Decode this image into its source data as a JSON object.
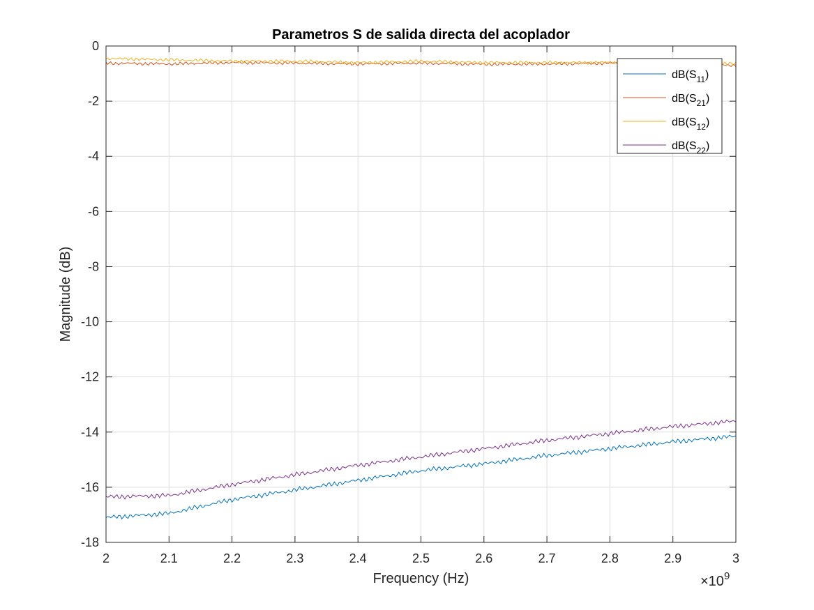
{
  "chart_data": {
    "type": "line",
    "title": "Parametros S de salida directa del acoplador",
    "xlabel": "Frequency (Hz)",
    "ylabel": "Magnitude (dB)",
    "x_exponent_label": "×10",
    "x_exponent_power": "9",
    "xlim": [
      2,
      3
    ],
    "ylim": [
      -18,
      0
    ],
    "x_ticks": [
      2,
      2.1,
      2.2,
      2.3,
      2.4,
      2.5,
      2.6,
      2.7,
      2.8,
      2.9,
      3
    ],
    "x_tick_labels": [
      "2",
      "2.1",
      "2.2",
      "2.3",
      "2.4",
      "2.5",
      "2.6",
      "2.7",
      "2.8",
      "2.9",
      "3"
    ],
    "y_ticks": [
      0,
      -2,
      -4,
      -6,
      -8,
      -10,
      -12,
      -14,
      -16,
      -18
    ],
    "y_tick_labels": [
      "0",
      "-2",
      "-4",
      "-6",
      "-8",
      "-10",
      "-12",
      "-14",
      "-16",
      "-18"
    ],
    "grid": true,
    "legend_position": "top-right",
    "x": [
      2.0,
      2.1,
      2.2,
      2.3,
      2.4,
      2.5,
      2.6,
      2.7,
      2.8,
      2.9,
      3.0
    ],
    "series": [
      {
        "name": "dB(S11)",
        "legend_prefix": "dB(S",
        "legend_sub": "11",
        "legend_suffix": ")",
        "color": "#0072BD",
        "values": [
          -17.1,
          -16.95,
          -16.45,
          -16.1,
          -15.75,
          -15.4,
          -15.15,
          -14.85,
          -14.6,
          -14.35,
          -14.15
        ]
      },
      {
        "name": "dB(S21)",
        "legend_prefix": "dB(S",
        "legend_sub": "21",
        "legend_suffix": ")",
        "color": "#D95319",
        "values": [
          -0.62,
          -0.65,
          -0.6,
          -0.62,
          -0.65,
          -0.62,
          -0.66,
          -0.65,
          -0.62,
          -0.62,
          -0.7
        ]
      },
      {
        "name": "dB(S12)",
        "legend_prefix": "dB(S",
        "legend_sub": "12",
        "legend_suffix": ")",
        "color": "#EDB120",
        "values": [
          -0.45,
          -0.5,
          -0.55,
          -0.55,
          -0.6,
          -0.55,
          -0.6,
          -0.6,
          -0.6,
          -0.5,
          -0.65
        ]
      },
      {
        "name": "dB(S22)",
        "legend_prefix": "dB(S",
        "legend_sub": "22",
        "legend_suffix": ")",
        "color": "#7E2F8E",
        "values": [
          -16.35,
          -16.3,
          -15.9,
          -15.55,
          -15.2,
          -14.9,
          -14.6,
          -14.3,
          -14.05,
          -13.8,
          -13.6
        ]
      }
    ]
  }
}
